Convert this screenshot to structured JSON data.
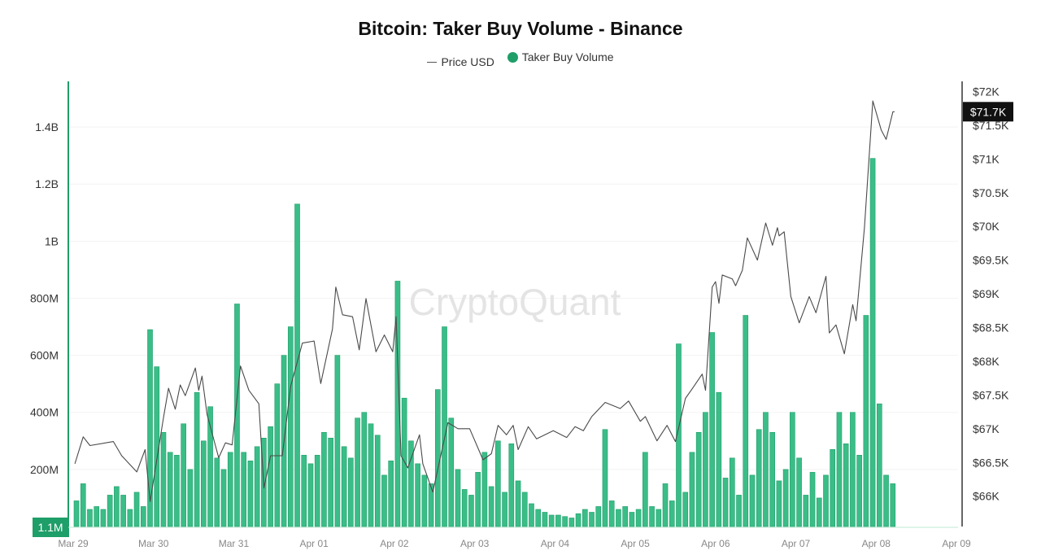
{
  "chart_data": {
    "type": "bar",
    "title": "Bitcoin: Taker Buy Volume - Binance",
    "legend": [
      {
        "name": "Price USD",
        "kind": "line",
        "color": "#555555"
      },
      {
        "name": "Taker Buy Volume",
        "kind": "bar",
        "color": "#1e9e68"
      }
    ],
    "legend_placement": "top-center",
    "watermark": "CryptoQuant",
    "x_ticks": [
      "Mar 29",
      "Mar 30",
      "Mar 31",
      "Apr 01",
      "Apr 02",
      "Apr 03",
      "Apr 04",
      "Apr 05",
      "Apr 06",
      "Apr 07",
      "Apr 08",
      "Apr 09"
    ],
    "y_left": {
      "ticks": [
        "200M",
        "400M",
        "600M",
        "800M",
        "1B",
        "1.2B",
        "1.4B"
      ],
      "tick_values": [
        200,
        400,
        600,
        800,
        1000,
        1200,
        1400
      ],
      "unit": "millions USD",
      "range": [
        0,
        1560
      ],
      "current_value_label": "1.1M"
    },
    "y_right": {
      "ticks": [
        "$66K",
        "$66.5K",
        "$67K",
        "$67.5K",
        "$68K",
        "$68.5K",
        "$69K",
        "$69.5K",
        "$70K",
        "$70.5K",
        "$71K",
        "$71.5K",
        "$72K"
      ],
      "tick_values": [
        66000,
        66500,
        67000,
        67500,
        68000,
        68500,
        69000,
        69500,
        70000,
        70500,
        71000,
        71500,
        72000
      ],
      "range": [
        65550,
        72150
      ],
      "current_value_label": "$71.7K",
      "current_value": 71700
    },
    "grid": true,
    "volume_series": {
      "name": "Taker Buy Volume",
      "start": "Mar 29 00:00",
      "interval_hours": 2,
      "values_millions": [
        90,
        150,
        60,
        70,
        60,
        110,
        140,
        110,
        60,
        120,
        70,
        690,
        560,
        330,
        260,
        250,
        360,
        200,
        470,
        300,
        420,
        240,
        200,
        260,
        780,
        260,
        230,
        280,
        310,
        350,
        500,
        600,
        700,
        1130,
        250,
        220,
        250,
        330,
        310,
        600,
        280,
        240,
        380,
        400,
        360,
        320,
        180,
        230,
        860,
        450,
        300,
        220,
        180,
        150,
        480,
        700,
        380,
        200,
        130,
        110,
        190,
        260,
        140,
        300,
        120,
        290,
        160,
        120,
        80,
        60,
        50,
        40,
        40,
        35,
        30,
        45,
        60,
        50,
        70,
        340,
        90,
        60,
        70,
        50,
        60,
        260,
        70,
        60,
        150,
        90,
        640,
        120,
        260,
        330,
        400,
        680,
        470,
        170,
        240,
        110,
        740,
        180,
        340,
        400,
        330,
        160,
        200,
        400,
        240,
        110,
        190,
        100,
        180,
        270,
        400,
        290,
        400,
        250,
        740,
        1290,
        430,
        180,
        150
      ]
    },
    "price_series": {
      "name": "Price USD",
      "points": [
        [
          "Mar 29 00:30",
          66480
        ],
        [
          "Mar 29 03:00",
          66880
        ],
        [
          "Mar 29 05:00",
          66750
        ],
        [
          "Mar 29 12:00",
          66810
        ],
        [
          "Mar 29 14:30",
          66600
        ],
        [
          "Mar 29 19:00",
          66360
        ],
        [
          "Mar 29 21:30",
          66690
        ],
        [
          "Mar 29 23:00",
          65920
        ],
        [
          "Mar 30 03:00",
          67170
        ],
        [
          "Mar 30 04:30",
          67600
        ],
        [
          "Mar 30 06:30",
          67290
        ],
        [
          "Mar 30 08:00",
          67650
        ],
        [
          "Mar 30 09:30",
          67490
        ],
        [
          "Mar 30 12:30",
          67900
        ],
        [
          "Mar 30 13:30",
          67570
        ],
        [
          "Mar 30 14:30",
          67780
        ],
        [
          "Mar 30 16:00",
          67210
        ],
        [
          "Mar 30 19:30",
          66570
        ],
        [
          "Mar 30 21:30",
          66790
        ],
        [
          "Mar 30 23:30",
          66760
        ],
        [
          "Mar 31 02:00",
          67930
        ],
        [
          "Mar 31 04:30",
          67570
        ],
        [
          "Mar 31 07:30",
          67370
        ],
        [
          "Mar 31 09:00",
          66120
        ],
        [
          "Mar 31 11:00",
          66600
        ],
        [
          "Mar 31 14:30",
          66600
        ],
        [
          "Mar 31 17:00",
          67630
        ],
        [
          "Mar 31 20:30",
          68270
        ],
        [
          "Apr 01 00:00",
          68300
        ],
        [
          "Apr 01 02:00",
          67670
        ],
        [
          "Apr 01 05:30",
          68480
        ],
        [
          "Apr 01 06:30",
          69100
        ],
        [
          "Apr 01 08:30",
          68690
        ],
        [
          "Apr 01 11:30",
          68660
        ],
        [
          "Apr 01 13:30",
          68170
        ],
        [
          "Apr 01 15:30",
          68930
        ],
        [
          "Apr 01 18:30",
          68140
        ],
        [
          "Apr 01 21:00",
          68390
        ],
        [
          "Apr 01 23:30",
          68140
        ],
        [
          "Apr 02 00:30",
          68660
        ],
        [
          "Apr 02 02:00",
          66600
        ],
        [
          "Apr 02 04:00",
          66420
        ],
        [
          "Apr 02 07:30",
          66910
        ],
        [
          "Apr 02 08:30",
          66480
        ],
        [
          "Apr 02 11:30",
          66060
        ],
        [
          "Apr 02 16:00",
          67090
        ],
        [
          "Apr 02 19:00",
          67000
        ],
        [
          "Apr 02 22:30",
          67000
        ],
        [
          "Apr 03 02:30",
          66540
        ],
        [
          "Apr 03 05:00",
          66630
        ],
        [
          "Apr 03 07:00",
          67050
        ],
        [
          "Apr 03 09:30",
          66910
        ],
        [
          "Apr 03 11:30",
          67050
        ],
        [
          "Apr 03 13:00",
          66690
        ],
        [
          "Apr 03 16:00",
          67030
        ],
        [
          "Apr 03 18:30",
          66850
        ],
        [
          "Apr 03 23:30",
          66970
        ],
        [
          "Apr 04 03:30",
          66870
        ],
        [
          "Apr 04 06:00",
          67030
        ],
        [
          "Apr 04 08:30",
          66970
        ],
        [
          "Apr 04 11:00",
          67180
        ],
        [
          "Apr 04 15:00",
          67390
        ],
        [
          "Apr 04 19:30",
          67300
        ],
        [
          "Apr 04 22:00",
          67410
        ],
        [
          "Apr 05 01:30",
          67110
        ],
        [
          "Apr 05 03:00",
          67180
        ],
        [
          "Apr 05 06:30",
          66820
        ],
        [
          "Apr 05 09:30",
          67050
        ],
        [
          "Apr 05 12:00",
          66810
        ],
        [
          "Apr 05 15:00",
          67450
        ],
        [
          "Apr 05 17:00",
          67590
        ],
        [
          "Apr 05 20:00",
          67810
        ],
        [
          "Apr 05 21:00",
          67570
        ],
        [
          "Apr 05 23:00",
          69100
        ],
        [
          "Apr 06 00:00",
          69180
        ],
        [
          "Apr 06 01:00",
          68860
        ],
        [
          "Apr 06 02:00",
          69280
        ],
        [
          "Apr 06 05:00",
          69220
        ],
        [
          "Apr 06 06:00",
          69120
        ],
        [
          "Apr 06 08:00",
          69350
        ],
        [
          "Apr 06 09:30",
          69830
        ],
        [
          "Apr 06 12:30",
          69500
        ],
        [
          "Apr 06 15:00",
          70050
        ],
        [
          "Apr 06 17:00",
          69720
        ],
        [
          "Apr 06 18:30",
          69980
        ],
        [
          "Apr 06 19:00",
          69860
        ],
        [
          "Apr 06 20:30",
          69920
        ],
        [
          "Apr 06 22:30",
          68960
        ],
        [
          "Apr 07 01:00",
          68570
        ],
        [
          "Apr 07 04:00",
          68960
        ],
        [
          "Apr 07 06:00",
          68720
        ],
        [
          "Apr 07 09:00",
          69260
        ],
        [
          "Apr 07 10:00",
          68420
        ],
        [
          "Apr 07 12:00",
          68540
        ],
        [
          "Apr 07 14:30",
          68110
        ],
        [
          "Apr 07 17:00",
          68840
        ],
        [
          "Apr 07 18:00",
          68600
        ],
        [
          "Apr 07 20:30",
          69980
        ],
        [
          "Apr 07 23:00",
          71860
        ],
        [
          "Apr 08 01:30",
          71430
        ],
        [
          "Apr 08 03:00",
          71290
        ],
        [
          "Apr 08 05:00",
          71700
        ],
        [
          "Apr 08 05:30",
          71700
        ]
      ]
    }
  }
}
